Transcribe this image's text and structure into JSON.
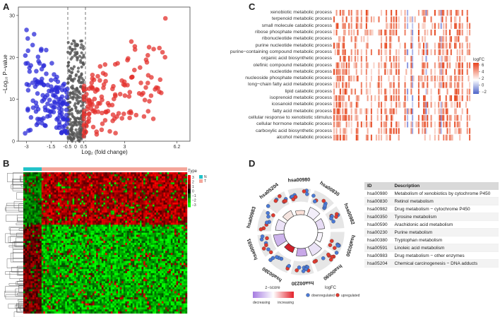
{
  "panels": {
    "a": "A",
    "b": "B",
    "c": "C",
    "d": "D"
  },
  "volcano": {
    "xlabel": "Log₂ (fold change)",
    "ylabel": "−Log₁₀ P−value",
    "x_ticks": [
      "-3",
      "-1.5",
      "-0.5",
      "0",
      "0.5",
      "3",
      "6.2"
    ],
    "y_ticks": [
      "0",
      "10",
      "20",
      "30"
    ]
  },
  "go_terms": [
    "xenobiotic metabolic process",
    "terpenoid metabolic process",
    "small molecule catabolic process",
    "ribose phosphate metabolic process",
    "ribonucleotide metabolic process",
    "purine nucleotide metabolic process",
    "purine−containing compound metabolic process",
    "organic acid biosynthetic process",
    "olefinic compound metabolic process",
    "nucleotide metabolic process",
    "nucleoside phosphate metabolic process",
    "long−chain fatty acid metabolic process",
    "lipid catabolic process",
    "isoprenoid metabolic process",
    "icosanoid metabolic process",
    "fatty acid metabolic process",
    "cellular response to xenobiotic stimulus",
    "cellular hormone metabolic process",
    "carboxylic acid biosynthetic process",
    "alcohol metabolic process"
  ],
  "go_legend": {
    "title": "logFC",
    "ticks": [
      "6",
      "4",
      "2",
      "0",
      "−2"
    ]
  },
  "heatmap_b": {
    "legend_title": "Type",
    "groups": [
      "N",
      "T"
    ],
    "group_colors": [
      "#22c3c9",
      "#f4a79b"
    ],
    "scale_ticks": [
      "3",
      "2",
      "1",
      "0",
      "−1",
      "−2",
      "−3"
    ]
  },
  "kegg": {
    "pathways": [
      "hsa00980",
      "hsa00830",
      "hsa00982",
      "hsa00350",
      "hsa00590",
      "hsa00230",
      "hsa00380",
      "hsa00591",
      "hsa00983",
      "hsa05204"
    ],
    "legend": {
      "zscore_title": "z−score",
      "decreasing": "decreasing",
      "increasing": "increasing",
      "logfc_title": "logFC",
      "down": "downregulated",
      "up": "upregulated"
    },
    "table": {
      "headers": [
        "ID",
        "Description"
      ],
      "rows": [
        [
          "hsa00980",
          "Metabolism of xenobiotics by cytochrome P450"
        ],
        [
          "hsa00830",
          "Retinol metabolism"
        ],
        [
          "hsa00982",
          "Drug metabolism − cytochrome P450"
        ],
        [
          "hsa00350",
          "Tyrosine metabolism"
        ],
        [
          "hsa00590",
          "Arachidonic acid metabolism"
        ],
        [
          "hsa00230",
          "Purine metabolism"
        ],
        [
          "hsa00380",
          "Tryptophan metabolism"
        ],
        [
          "hsa00591",
          "Linoleic acid metabolism"
        ],
        [
          "hsa00983",
          "Drug metabolism − other enzymes"
        ],
        [
          "hsa05204",
          "Chemical carcinogenesis − DNA adducts"
        ]
      ]
    }
  },
  "colors": {
    "down": "#2b2bd8",
    "up": "#e3302c",
    "ns": "#555555"
  }
}
